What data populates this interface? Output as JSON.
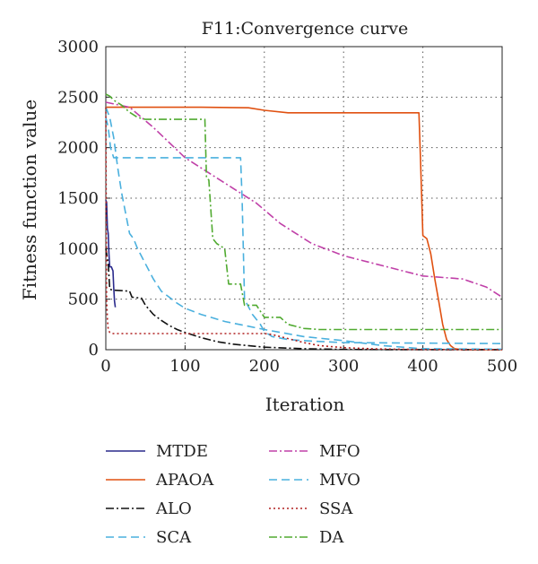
{
  "chart_data": {
    "type": "line",
    "title": "F11:Convergence curve",
    "xlabel": "Iteration",
    "ylabel": "Fitness function value",
    "xlim": [
      0,
      500
    ],
    "ylim": [
      0,
      3000
    ],
    "x_ticks": [
      0,
      100,
      200,
      300,
      400,
      500
    ],
    "y_ticks": [
      0,
      500,
      1000,
      1500,
      2000,
      2500,
      3000
    ],
    "grid": true,
    "legend_position": "bottom",
    "series": [
      {
        "name": "MTDE",
        "color": "#2a2a8c",
        "dash": "solid",
        "x": [
          0,
          1,
          2,
          3,
          4,
          5,
          6,
          7,
          8,
          9,
          10,
          11,
          12
        ],
        "y": [
          1480,
          1460,
          1200,
          1150,
          950,
          820,
          820,
          820,
          800,
          780,
          620,
          480,
          420
        ]
      },
      {
        "name": "APAOA",
        "color": "#e05010",
        "dash": "solid",
        "x": [
          0,
          60,
          120,
          180,
          200,
          230,
          300,
          395,
          397,
          400,
          405,
          410,
          415,
          420,
          425,
          430,
          435,
          440,
          450,
          500
        ],
        "y": [
          2400,
          2400,
          2400,
          2395,
          2370,
          2345,
          2345,
          2345,
          1900,
          1130,
          1100,
          950,
          700,
          480,
          250,
          100,
          40,
          10,
          0,
          0
        ]
      },
      {
        "name": "ALO",
        "color": "#111111",
        "dash": "dashdot",
        "x": [
          0,
          3,
          5,
          8,
          30,
          33,
          45,
          50,
          60,
          70,
          80,
          90,
          100,
          120,
          140,
          160,
          200,
          250,
          300,
          350,
          500
        ],
        "y": [
          1000,
          850,
          600,
          590,
          580,
          520,
          510,
          440,
          350,
          290,
          240,
          200,
          170,
          120,
          80,
          55,
          25,
          10,
          3,
          1,
          0
        ]
      },
      {
        "name": "SCA",
        "color": "#4ab0de",
        "dash": "dashed",
        "x": [
          0,
          5,
          10,
          15,
          20,
          25,
          30,
          35,
          40,
          50,
          60,
          70,
          80,
          90,
          100,
          120,
          150,
          200,
          250,
          300,
          350,
          400,
          500
        ],
        "y": [
          2400,
          2300,
          2100,
          1800,
          1550,
          1350,
          1150,
          1100,
          1000,
          850,
          700,
          580,
          520,
          460,
          410,
          350,
          280,
          200,
          130,
          90,
          40,
          10,
          5
        ]
      },
      {
        "name": "MFO",
        "color": "#c040a8",
        "dash": "dashdot",
        "x": [
          0,
          30,
          60,
          80,
          100,
          130,
          160,
          190,
          220,
          260,
          300,
          350,
          400,
          450,
          480,
          500
        ],
        "y": [
          2450,
          2400,
          2200,
          2050,
          1900,
          1750,
          1600,
          1450,
          1250,
          1050,
          930,
          830,
          730,
          700,
          620,
          520
        ]
      },
      {
        "name": "MVO",
        "color": "#4ab0de",
        "dash": "dashed",
        "x": [
          0,
          3,
          6,
          10,
          170,
          172,
          175,
          185,
          190,
          195,
          200,
          210,
          230,
          260,
          300,
          500
        ],
        "y": [
          2300,
          2200,
          2000,
          1900,
          1900,
          1500,
          500,
          350,
          300,
          250,
          180,
          130,
          100,
          85,
          70,
          60
        ]
      },
      {
        "name": "SSA",
        "color": "#b02020",
        "dash": "dotted",
        "x": [
          0,
          1,
          2,
          3,
          5,
          8,
          10,
          200,
          210,
          220,
          230,
          250,
          270,
          300,
          340,
          400,
          500
        ],
        "y": [
          2400,
          500,
          300,
          200,
          170,
          160,
          160,
          160,
          150,
          130,
          110,
          70,
          40,
          20,
          8,
          2,
          0
        ]
      },
      {
        "name": "DA",
        "color": "#50aa30",
        "dash": "dashdot",
        "x": [
          0,
          5,
          10,
          20,
          30,
          40,
          50,
          80,
          125,
          127,
          130,
          135,
          140,
          150,
          155,
          170,
          175,
          190,
          200,
          220,
          230,
          250,
          270,
          300,
          500
        ],
        "y": [
          2530,
          2510,
          2470,
          2420,
          2350,
          2300,
          2280,
          2280,
          2280,
          1700,
          1680,
          1100,
          1050,
          1000,
          650,
          650,
          440,
          440,
          320,
          320,
          250,
          210,
          200,
          200,
          200
        ]
      }
    ]
  }
}
